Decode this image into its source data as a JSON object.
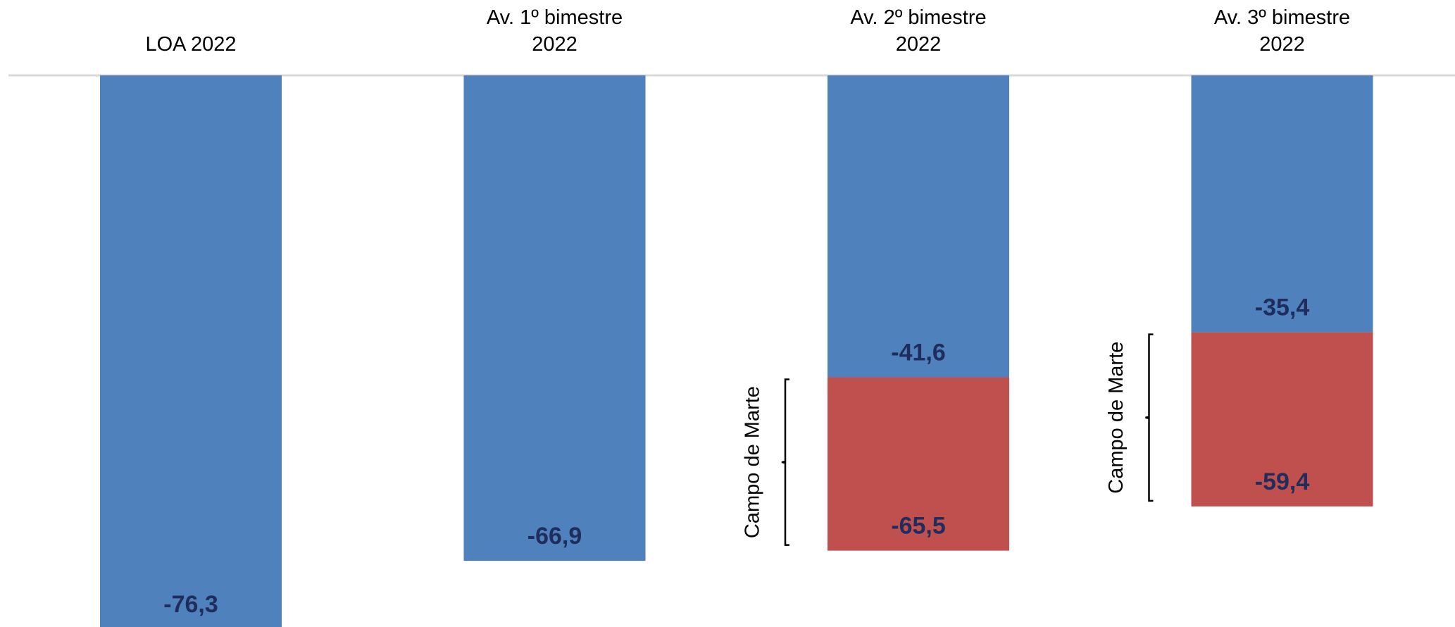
{
  "chart_data": {
    "type": "bar",
    "orientation": "vertical",
    "stacked": true,
    "categories": [
      [
        "LOA 2022"
      ],
      [
        "Av. 1º bimestre",
        "2022"
      ],
      [
        "Av. 2º bimestre",
        "2022"
      ],
      [
        "Av. 3º bimestre",
        "2022"
      ]
    ],
    "series": [
      {
        "values": [
          -76.3,
          -66.9,
          -41.6,
          -35.4
        ],
        "labels": [
          "-76,3",
          "-66,9",
          "-41,6",
          "-35,4"
        ]
      },
      {
        "values": [
          0,
          0,
          -23.9,
          -24.0
        ],
        "labels": [
          "",
          "",
          "-65,5",
          "-59,4"
        ]
      }
    ],
    "annotations": [
      {
        "category_index": 2,
        "text": "Campo de Marte"
      },
      {
        "category_index": 3,
        "text": "Campo de Marte"
      }
    ],
    "ylim": [
      -76.3,
      0
    ],
    "axis_at": "top",
    "grid": false,
    "legend": "none",
    "colors": {
      "blue": "#4F81BD",
      "red": "#C0504D",
      "label": "#1F2D5C",
      "axis": "#D9D9D9"
    }
  }
}
